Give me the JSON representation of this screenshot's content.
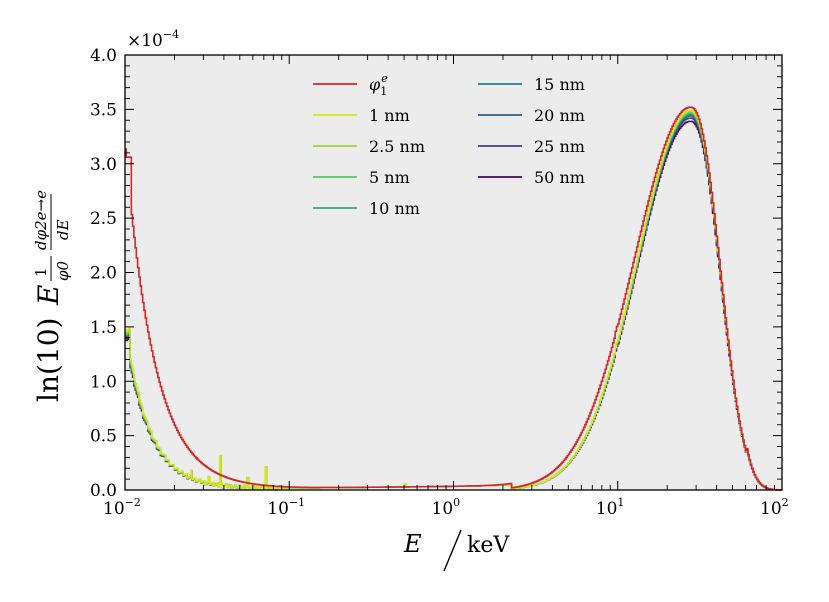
{
  "chart_data": {
    "type": "line",
    "title": "",
    "xscale": "log",
    "xlim": [
      0.01,
      100
    ],
    "ylim": [
      0,
      0.0004
    ],
    "y_multiplier": "×10−4",
    "y_multiplier_base": "×10",
    "y_multiplier_exp": "−4",
    "xlabel": {
      "var": "E",
      "unit": "keV"
    },
    "ylabel": {
      "prefix": "ln(10)",
      "var": "E",
      "num": "1",
      "den": "φ0",
      "dnum": "dφ2e→e",
      "dden": "dE"
    },
    "x_ticks": [
      {
        "value": 0.01,
        "base": "10",
        "exp": "−2"
      },
      {
        "value": 0.1,
        "base": "10",
        "exp": "−1"
      },
      {
        "value": 1,
        "base": "10",
        "exp": "0"
      },
      {
        "value": 10,
        "base": "10",
        "exp": "1"
      },
      {
        "value": 100,
        "base": "10",
        "exp": "2"
      }
    ],
    "y_ticks": [
      {
        "value": 0.0,
        "label": "0.0"
      },
      {
        "value": 5e-05,
        "label": "0.5"
      },
      {
        "value": 0.0001,
        "label": "1.0"
      },
      {
        "value": 0.00015,
        "label": "1.5"
      },
      {
        "value": 0.0002,
        "label": "2.0"
      },
      {
        "value": 0.00025,
        "label": "2.5"
      },
      {
        "value": 0.0003,
        "label": "3.0"
      },
      {
        "value": 0.00035,
        "label": "3.5"
      },
      {
        "value": 0.0004,
        "label": "4.0"
      }
    ],
    "legend_position": "top-center",
    "series": [
      {
        "name": "φ1e",
        "label_main": "φ",
        "label_sub": "1",
        "label_sup": "e",
        "color": "#d62728",
        "peak": 3.52,
        "x_peak": 27.5,
        "low_amp": 3.12,
        "bump": 1.05,
        "width": 1.0
      },
      {
        "name": "1 nm",
        "label_main": "1 nm",
        "color": "#d4e616",
        "peak": 3.49,
        "x_peak": 27.5,
        "low_amp": 1.47,
        "bump": 0.95,
        "width": 0.95
      },
      {
        "name": "2.5 nm",
        "label_main": "2.5 nm",
        "color": "#9fcf3a",
        "peak": 3.48,
        "x_peak": 27.5,
        "low_amp": 1.45,
        "bump": 0.95,
        "width": 0.95
      },
      {
        "name": "5 nm",
        "label_main": "5 nm",
        "color": "#5cc461",
        "peak": 3.47,
        "x_peak": 27.5,
        "low_amp": 1.44,
        "bump": 0.95,
        "width": 0.95
      },
      {
        "name": "10 nm",
        "label_main": "10 nm",
        "color": "#27a88a",
        "peak": 3.46,
        "x_peak": 27.5,
        "low_amp": 1.43,
        "bump": 0.95,
        "width": 0.95
      },
      {
        "name": "15 nm",
        "label_main": "15 nm",
        "color": "#21808d",
        "peak": 3.45,
        "x_peak": 27.5,
        "low_amp": 1.42,
        "bump": 0.94,
        "width": 0.95
      },
      {
        "name": "20 nm",
        "label_main": "20 nm",
        "color": "#2c5f8c",
        "peak": 3.44,
        "x_peak": 27.5,
        "low_amp": 1.41,
        "bump": 0.94,
        "width": 0.95
      },
      {
        "name": "25 nm",
        "label_main": "25 nm",
        "color": "#433e85",
        "peak": 3.42,
        "x_peak": 27.5,
        "low_amp": 1.4,
        "bump": 0.93,
        "width": 0.95
      },
      {
        "name": "50 nm",
        "label_main": "50 nm",
        "color": "#45085a",
        "peak": 3.39,
        "x_peak": 27.5,
        "low_amp": 1.38,
        "bump": 0.92,
        "width": 0.95
      }
    ]
  }
}
